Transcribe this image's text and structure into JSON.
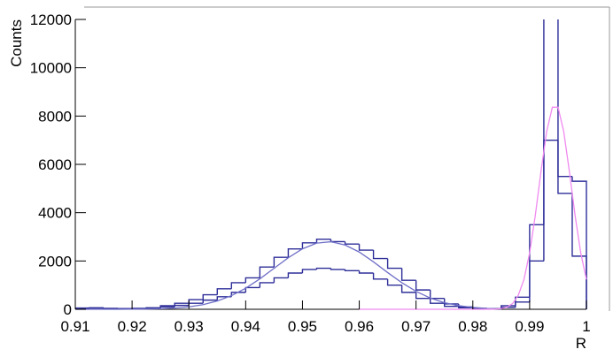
{
  "chart_data": {
    "type": "histogram",
    "x_label": "R",
    "y_label": "Counts",
    "xlim": [
      0.91,
      1
    ],
    "ylim": [
      0,
      12000
    ],
    "xticks": [
      0.91,
      0.92,
      0.93,
      0.94,
      0.95,
      0.96,
      0.97,
      0.98,
      0.99,
      1
    ],
    "yticks": [
      0,
      2000,
      4000,
      6000,
      8000,
      10000,
      12000
    ],
    "bins": [
      0.91,
      0.9125,
      0.915,
      0.9175,
      0.92,
      0.9225,
      0.925,
      0.9275,
      0.93,
      0.9325,
      0.935,
      0.9375,
      0.94,
      0.9425,
      0.945,
      0.9475,
      0.95,
      0.9525,
      0.955,
      0.9575,
      0.96,
      0.9625,
      0.965,
      0.9675,
      0.97,
      0.9725,
      0.975,
      0.9775,
      0.98,
      0.9825,
      0.985,
      0.9875,
      0.99,
      0.9925,
      0.995,
      0.9975,
      1
    ],
    "series": [
      {
        "color": "#2e2e99",
        "values": [
          50,
          60,
          40,
          30,
          40,
          60,
          150,
          250,
          400,
          600,
          850,
          1100,
          1300,
          1750,
          2150,
          2500,
          2750,
          2900,
          2800,
          2700,
          2450,
          2100,
          1700,
          1200,
          800,
          450,
          220,
          100,
          40,
          30,
          150,
          500,
          3500,
          12500,
          5500,
          5300
        ]
      },
      {
        "color": "#2e2e99",
        "values": [
          40,
          50,
          30,
          30,
          30,
          50,
          100,
          160,
          250,
          380,
          520,
          700,
          900,
          1100,
          1300,
          1500,
          1650,
          1700,
          1650,
          1600,
          1500,
          1250,
          1000,
          700,
          450,
          250,
          120,
          60,
          25,
          20,
          80,
          300,
          2000,
          7000,
          4800,
          2200
        ]
      }
    ],
    "curves": [
      {
        "color": "#7070c8",
        "x": [
          0.91,
          0.9125,
          0.915,
          0.9175,
          0.92,
          0.9225,
          0.925,
          0.9275,
          0.93,
          0.9325,
          0.935,
          0.9375,
          0.94,
          0.9425,
          0.945,
          0.9475,
          0.95,
          0.9525,
          0.955,
          0.9575,
          0.96,
          0.9625,
          0.965,
          0.9675,
          0.97,
          0.9725,
          0.975,
          0.9775,
          0.98,
          0.9825,
          0.985
        ],
        "values": [
          0,
          0,
          1,
          1,
          4,
          10,
          23,
          49,
          100,
          192,
          343,
          565,
          873,
          1261,
          1698,
          2134,
          2503,
          2738,
          2796,
          2662,
          2369,
          1964,
          1520,
          1099,
          742,
          465,
          272,
          149,
          77,
          36,
          16
        ]
      },
      {
        "color": "#f08af0",
        "x": [
          0.96,
          0.97,
          0.98,
          0.981,
          0.982,
          0.983,
          0.984,
          0.985,
          0.986,
          0.987,
          0.988,
          0.989,
          0.99,
          0.991,
          0.992,
          0.993,
          0.994,
          0.995,
          0.996,
          0.997,
          0.998,
          0.999,
          1
        ],
        "values": [
          0,
          0,
          0,
          0,
          0,
          2,
          8,
          27,
          85,
          235,
          577,
          1233,
          2330,
          3890,
          5704,
          7363,
          8366,
          8366,
          7363,
          5704,
          3890,
          2330,
          1233
        ]
      }
    ]
  }
}
